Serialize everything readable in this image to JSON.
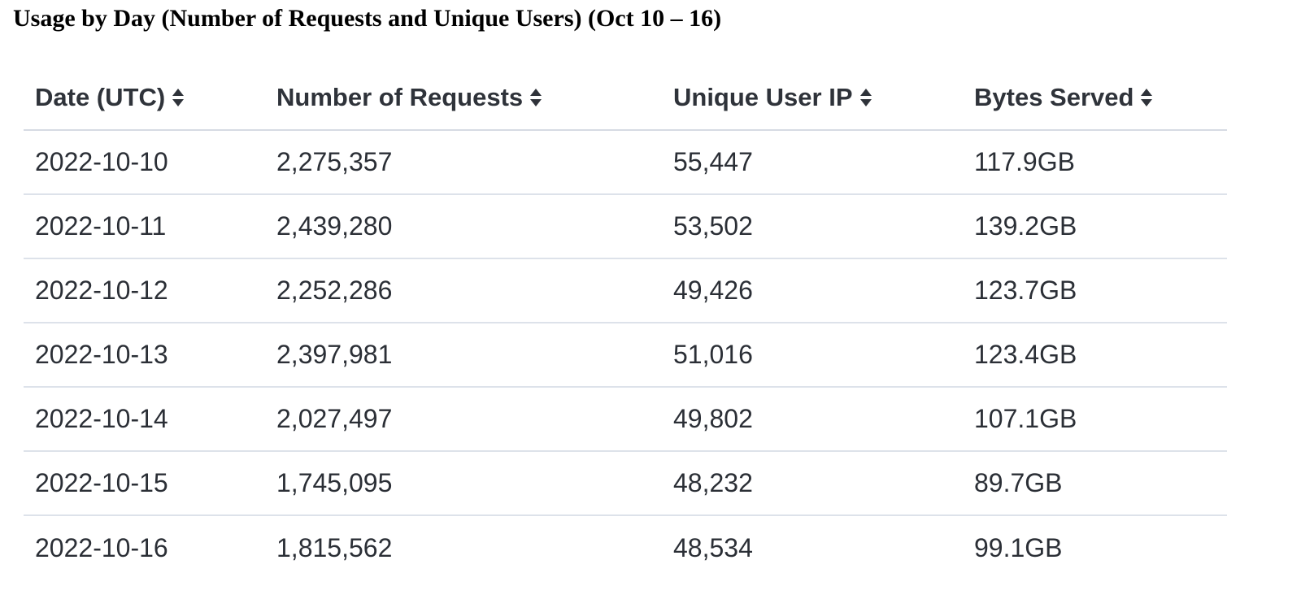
{
  "title": "Usage by Day (Number of Requests and Unique Users) (Oct 10 – 16)",
  "table": {
    "columns": [
      {
        "label": "Date (UTC)",
        "sort_icon": "sort-updown-icon"
      },
      {
        "label": "Number of Requests",
        "sort_icon": "sort-updown-icon"
      },
      {
        "label": "Unique User IP",
        "sort_icon": "sort-updown-icon"
      },
      {
        "label": "Bytes Served",
        "sort_icon": "sort-updown-icon"
      }
    ],
    "rows": [
      {
        "date": "2022-10-10",
        "requests": "2,275,357",
        "unique_ip": "55,447",
        "bytes": "117.9GB"
      },
      {
        "date": "2022-10-11",
        "requests": "2,439,280",
        "unique_ip": "53,502",
        "bytes": "139.2GB"
      },
      {
        "date": "2022-10-12",
        "requests": "2,252,286",
        "unique_ip": "49,426",
        "bytes": "123.7GB"
      },
      {
        "date": "2022-10-13",
        "requests": "2,397,981",
        "unique_ip": "51,016",
        "bytes": "123.4GB"
      },
      {
        "date": "2022-10-14",
        "requests": "2,027,497",
        "unique_ip": "49,802",
        "bytes": "107.1GB"
      },
      {
        "date": "2022-10-15",
        "requests": "1,745,095",
        "unique_ip": "48,232",
        "bytes": "89.7GB"
      },
      {
        "date": "2022-10-16",
        "requests": "1,815,562",
        "unique_ip": "48,534",
        "bytes": "99.1GB"
      }
    ]
  },
  "colors": {
    "text": "#2b2f36",
    "header_text": "#2f333a",
    "divider": "#dde2ea"
  }
}
